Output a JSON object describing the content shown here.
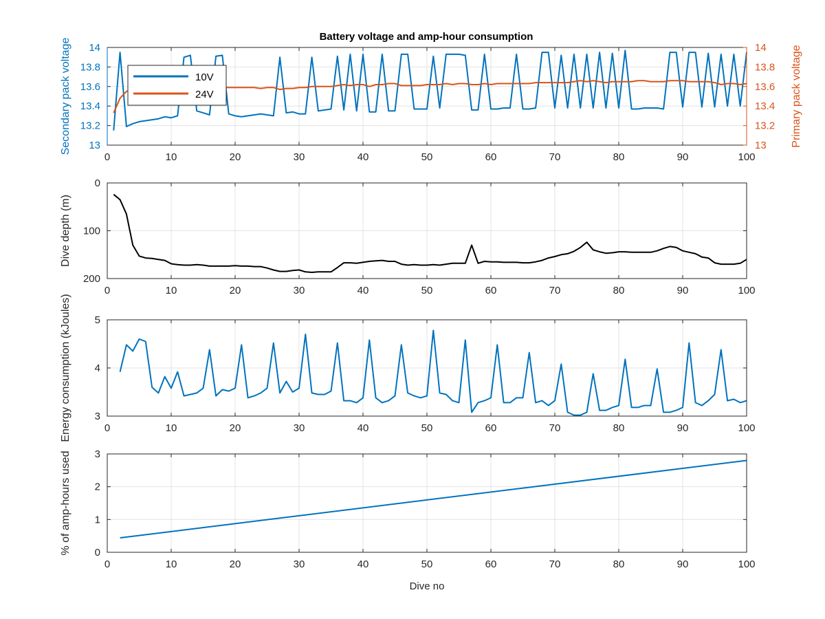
{
  "figure": {
    "title": "Battery voltage and amp-hour consumption",
    "xlabel": "Dive no",
    "colors": {
      "v10": "#0072BD",
      "v24": "#D95319",
      "depth": "#000000",
      "energy": "#0072BD",
      "amp": "#0072BD",
      "grid": "#e3e3e3",
      "axis": "#262626"
    }
  },
  "chart_data": [
    {
      "type": "line",
      "title": "Battery voltage and amp-hour consumption",
      "xlabel": "",
      "ylabel": "Secondary pack voltage",
      "ylabel_right": "Primary pack voltage",
      "xlim": [
        0,
        100
      ],
      "ylim": [
        13,
        14
      ],
      "ylim_right": [
        13,
        14
      ],
      "xticks": [
        "0",
        "10",
        "20",
        "30",
        "40",
        "50",
        "60",
        "70",
        "80",
        "90",
        "100"
      ],
      "yticks": [
        "13",
        "13.2",
        "13.4",
        "13.6",
        "13.8",
        "14"
      ],
      "yticks_right": [
        "13",
        "13.2",
        "13.4",
        "13.6",
        "13.8",
        "14"
      ],
      "grid": true,
      "legend": "top-left",
      "series": [
        {
          "name": "10V",
          "axis": "left",
          "x": [
            1,
            2,
            3,
            4,
            5,
            6,
            7,
            8,
            9,
            10,
            11,
            12,
            13,
            14,
            15,
            16,
            17,
            18,
            19,
            20,
            21,
            22,
            23,
            24,
            25,
            26,
            27,
            28,
            29,
            30,
            31,
            32,
            33,
            34,
            35,
            36,
            37,
            38,
            39,
            40,
            41,
            42,
            43,
            44,
            45,
            46,
            47,
            48,
            49,
            50,
            51,
            52,
            53,
            54,
            55,
            56,
            57,
            58,
            59,
            60,
            61,
            62,
            63,
            64,
            65,
            66,
            67,
            68,
            69,
            70,
            71,
            72,
            73,
            74,
            75,
            76,
            77,
            78,
            79,
            80,
            81,
            82,
            83,
            84,
            85,
            86,
            87,
            88,
            89,
            90,
            91,
            92,
            93,
            94,
            95,
            96,
            97,
            98,
            99,
            100
          ],
          "values": [
            13.15,
            13.95,
            13.19,
            13.22,
            13.24,
            13.25,
            13.26,
            13.27,
            13.29,
            13.28,
            13.3,
            13.9,
            13.92,
            13.35,
            13.33,
            13.31,
            13.91,
            13.92,
            13.32,
            13.3,
            13.29,
            13.3,
            13.31,
            13.32,
            13.31,
            13.3,
            13.9,
            13.33,
            13.34,
            13.32,
            13.32,
            13.9,
            13.35,
            13.36,
            13.37,
            13.91,
            13.36,
            13.93,
            13.35,
            13.93,
            13.34,
            13.34,
            13.93,
            13.35,
            13.35,
            13.93,
            13.93,
            13.37,
            13.37,
            13.37,
            13.91,
            13.38,
            13.93,
            13.93,
            13.93,
            13.92,
            13.36,
            13.36,
            13.93,
            13.37,
            13.37,
            13.38,
            13.38,
            13.93,
            13.37,
            13.37,
            13.38,
            13.95,
            13.95,
            13.38,
            13.92,
            13.38,
            13.93,
            13.38,
            13.93,
            13.38,
            13.95,
            13.38,
            13.94,
            13.38,
            13.97,
            13.37,
            13.37,
            13.38,
            13.38,
            13.38,
            13.37,
            13.95,
            13.95,
            13.39,
            13.95,
            13.95,
            13.39,
            13.94,
            13.39,
            13.93,
            13.4,
            13.93,
            13.4,
            13.95
          ],
          "color": "#0072BD"
        },
        {
          "name": "24V",
          "axis": "right",
          "x": [
            1,
            2,
            3,
            4,
            5,
            6,
            7,
            8,
            9,
            10,
            11,
            12,
            13,
            14,
            15,
            16,
            17,
            18,
            19,
            20,
            21,
            22,
            23,
            24,
            25,
            26,
            27,
            28,
            29,
            30,
            31,
            32,
            33,
            34,
            35,
            36,
            37,
            38,
            39,
            40,
            41,
            42,
            43,
            44,
            45,
            46,
            47,
            48,
            49,
            50,
            51,
            52,
            53,
            54,
            55,
            56,
            57,
            58,
            59,
            60,
            61,
            62,
            63,
            64,
            65,
            66,
            67,
            68,
            69,
            70,
            71,
            72,
            73,
            74,
            75,
            76,
            77,
            78,
            79,
            80,
            81,
            82,
            83,
            84,
            85,
            86,
            87,
            88,
            89,
            90,
            91,
            92,
            93,
            94,
            95,
            96,
            97,
            98,
            99,
            100
          ],
          "values": [
            13.33,
            13.48,
            13.55,
            13.57,
            13.58,
            13.58,
            13.59,
            13.59,
            13.58,
            13.59,
            13.58,
            13.59,
            13.59,
            13.58,
            13.58,
            13.59,
            13.59,
            13.59,
            13.59,
            13.59,
            13.59,
            13.59,
            13.59,
            13.58,
            13.59,
            13.59,
            13.57,
            13.58,
            13.58,
            13.59,
            13.59,
            13.6,
            13.6,
            13.6,
            13.6,
            13.61,
            13.62,
            13.61,
            13.62,
            13.62,
            13.6,
            13.62,
            13.62,
            13.63,
            13.63,
            13.61,
            13.61,
            13.61,
            13.61,
            13.62,
            13.62,
            13.62,
            13.63,
            13.62,
            13.63,
            13.63,
            13.62,
            13.62,
            13.63,
            13.62,
            13.63,
            13.63,
            13.63,
            13.63,
            13.63,
            13.63,
            13.64,
            13.64,
            13.64,
            13.64,
            13.64,
            13.64,
            13.65,
            13.66,
            13.65,
            13.66,
            13.65,
            13.64,
            13.65,
            13.65,
            13.65,
            13.65,
            13.66,
            13.66,
            13.65,
            13.65,
            13.65,
            13.66,
            13.66,
            13.66,
            13.65,
            13.65,
            13.65,
            13.65,
            13.64,
            13.62,
            13.63,
            13.63,
            13.62,
            13.63
          ],
          "color": "#D95319"
        }
      ]
    },
    {
      "type": "line",
      "title": "",
      "xlabel": "",
      "ylabel": "Dive depth (m)",
      "xlim": [
        0,
        100
      ],
      "ylim": [
        0,
        200
      ],
      "y_reversed": true,
      "xticks": [
        "0",
        "10",
        "20",
        "30",
        "40",
        "50",
        "60",
        "70",
        "80",
        "90",
        "100"
      ],
      "yticks": [
        "0",
        "100",
        "200"
      ],
      "grid": true,
      "series": [
        {
          "x": [
            1,
            2,
            3,
            4,
            5,
            6,
            7,
            8,
            9,
            10,
            11,
            12,
            13,
            14,
            15,
            16,
            17,
            18,
            19,
            20,
            21,
            22,
            23,
            24,
            25,
            26,
            27,
            28,
            29,
            30,
            31,
            32,
            33,
            34,
            35,
            36,
            37,
            38,
            39,
            40,
            41,
            42,
            43,
            44,
            45,
            46,
            47,
            48,
            49,
            50,
            51,
            52,
            53,
            54,
            55,
            56,
            57,
            58,
            59,
            60,
            61,
            62,
            63,
            64,
            65,
            66,
            67,
            68,
            69,
            70,
            71,
            72,
            73,
            74,
            75,
            76,
            77,
            78,
            79,
            80,
            81,
            82,
            83,
            84,
            85,
            86,
            87,
            88,
            89,
            90,
            91,
            92,
            93,
            94,
            95,
            96,
            97,
            98,
            99,
            100
          ],
          "values": [
            24,
            35,
            65,
            130,
            153,
            157,
            158,
            160,
            162,
            169,
            171,
            172,
            172,
            171,
            172,
            174,
            174,
            174,
            174,
            173,
            174,
            174,
            175,
            175,
            178,
            182,
            185,
            185,
            183,
            182,
            186,
            187,
            186,
            186,
            186,
            177,
            167,
            167,
            168,
            166,
            164,
            163,
            162,
            164,
            164,
            170,
            172,
            171,
            172,
            172,
            171,
            172,
            170,
            168,
            168,
            168,
            130,
            168,
            164,
            165,
            165,
            166,
            166,
            166,
            167,
            167,
            165,
            162,
            157,
            154,
            150,
            148,
            143,
            135,
            124,
            140,
            144,
            147,
            146,
            144,
            144,
            145,
            145,
            145,
            145,
            142,
            137,
            133,
            135,
            142,
            145,
            148,
            155,
            157,
            167,
            170,
            170,
            170,
            168,
            160
          ],
          "color": "#000000"
        }
      ]
    },
    {
      "type": "line",
      "title": "",
      "xlabel": "",
      "ylabel": "Energy consumption (kJoules)",
      "xlim": [
        0,
        100
      ],
      "ylim": [
        3,
        5
      ],
      "xticks": [
        "0",
        "10",
        "20",
        "30",
        "40",
        "50",
        "60",
        "70",
        "80",
        "90",
        "100"
      ],
      "yticks": [
        "3",
        "4",
        "5"
      ],
      "grid": true,
      "series": [
        {
          "x": [
            2,
            3,
            4,
            5,
            6,
            7,
            8,
            9,
            10,
            11,
            12,
            13,
            14,
            15,
            16,
            17,
            18,
            19,
            20,
            21,
            22,
            23,
            24,
            25,
            26,
            27,
            28,
            29,
            30,
            31,
            32,
            33,
            34,
            35,
            36,
            37,
            38,
            39,
            40,
            41,
            42,
            43,
            44,
            45,
            46,
            47,
            48,
            49,
            50,
            51,
            52,
            53,
            54,
            55,
            56,
            57,
            58,
            59,
            60,
            61,
            62,
            63,
            64,
            65,
            66,
            67,
            68,
            69,
            70,
            71,
            72,
            73,
            74,
            75,
            76,
            77,
            78,
            79,
            80,
            81,
            82,
            83,
            84,
            85,
            86,
            87,
            88,
            89,
            90,
            91,
            92,
            93,
            94,
            95,
            96,
            97,
            98,
            99,
            100
          ],
          "values": [
            3.92,
            4.48,
            4.35,
            4.6,
            4.55,
            3.6,
            3.48,
            3.82,
            3.58,
            3.92,
            3.42,
            3.45,
            3.48,
            3.58,
            4.38,
            3.42,
            3.55,
            3.52,
            3.58,
            4.48,
            3.38,
            3.42,
            3.48,
            3.58,
            4.52,
            3.48,
            3.72,
            3.5,
            3.58,
            4.7,
            3.48,
            3.45,
            3.45,
            3.52,
            4.52,
            3.32,
            3.32,
            3.28,
            3.38,
            4.58,
            3.38,
            3.28,
            3.32,
            3.42,
            4.48,
            3.48,
            3.42,
            3.38,
            3.42,
            4.78,
            3.48,
            3.45,
            3.32,
            3.28,
            4.58,
            3.08,
            3.28,
            3.32,
            3.38,
            4.48,
            3.28,
            3.28,
            3.38,
            3.38,
            4.32,
            3.28,
            3.32,
            3.22,
            3.32,
            4.08,
            3.08,
            3.02,
            3.02,
            3.08,
            3.88,
            3.12,
            3.12,
            3.18,
            3.22,
            4.18,
            3.18,
            3.18,
            3.22,
            3.22,
            3.98,
            3.08,
            3.08,
            3.12,
            3.18,
            4.52,
            3.28,
            3.22,
            3.32,
            3.45,
            4.38,
            3.32,
            3.35,
            3.28,
            3.32
          ],
          "color": "#0072BD"
        }
      ]
    },
    {
      "type": "line",
      "title": "",
      "xlabel": "Dive no",
      "ylabel": "% of amp-hours used",
      "xlim": [
        0,
        100
      ],
      "ylim": [
        0,
        3
      ],
      "xticks": [
        "0",
        "10",
        "20",
        "30",
        "40",
        "50",
        "60",
        "70",
        "80",
        "90",
        "100"
      ],
      "yticks": [
        "0",
        "1",
        "2",
        "3"
      ],
      "grid": true,
      "series": [
        {
          "x": [
            2,
            100
          ],
          "values": [
            0.44,
            2.8
          ],
          "color": "#0072BD"
        }
      ]
    }
  ]
}
